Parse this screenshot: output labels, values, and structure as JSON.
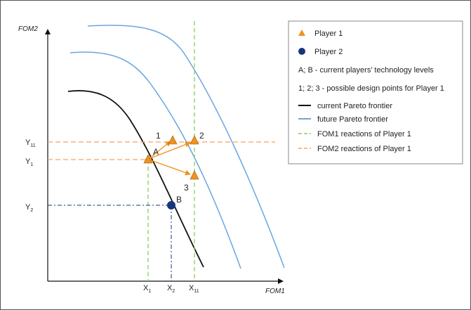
{
  "axes": {
    "y_label": "FOM2",
    "x_label": "FOM1",
    "y_ticks": [
      {
        "main": "Y",
        "sub": "11"
      },
      {
        "main": "Y",
        "sub": "1"
      },
      {
        "main": "Y",
        "sub": "2"
      }
    ],
    "x_ticks": [
      {
        "main": "X",
        "sub": "1"
      },
      {
        "main": "X",
        "sub": "2"
      },
      {
        "main": "X",
        "sub": "11"
      }
    ]
  },
  "points": {
    "A": "A",
    "B": "B",
    "p1": "1",
    "p2": "2",
    "p3": "3"
  },
  "legend": {
    "player1": "Player 1",
    "player2": "Player 2",
    "tech_levels": "A; B  - current players’ technology levels",
    "design_points": "1; 2; 3  - possible design points for Player 1",
    "current_frontier": "current Pareto frontier",
    "future_frontier": "future Pareto frontier",
    "fom1_reactions": "FOM1 reactions of Player 1",
    "fom2_reactions": "FOM2 reactions of Player 1"
  },
  "colors": {
    "player1": "#f0921e",
    "player2": "#17367a",
    "current_frontier": "#111111",
    "future_frontier": "#6aa6e0",
    "fom1_reactions": "#86d05a",
    "fom2_reactions": "#f5a55a"
  }
}
